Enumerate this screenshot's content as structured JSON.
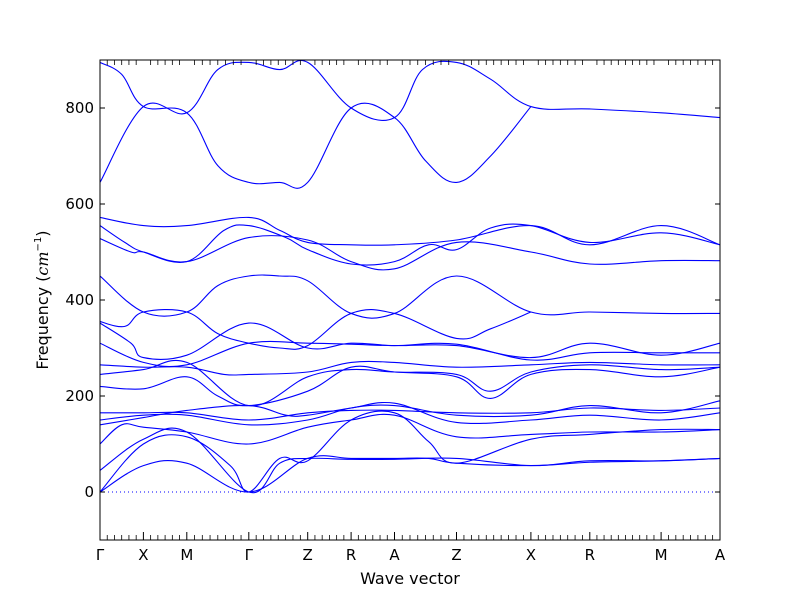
{
  "chart_data": {
    "type": "line",
    "title": "",
    "xlabel": "Wave vector",
    "ylabel_main": "Frequency (",
    "ylabel_unit": "cm",
    "ylabel_exp": "−1",
    "ylabel_close": ")",
    "ylim": [
      -100,
      900
    ],
    "yticks": [
      0,
      200,
      400,
      600,
      800
    ],
    "ytick_labels": [
      "0",
      "200",
      "400",
      "600",
      "800"
    ],
    "xlim": [
      0,
      10
    ],
    "kpoints": [
      {
        "label": "Γ",
        "x": 0
      },
      {
        "label": "X",
        "x": 0.7
      },
      {
        "label": "M",
        "x": 1.4
      },
      {
        "label": "Γ",
        "x": 2.4
      },
      {
        "label": "Z",
        "x": 3.35
      },
      {
        "label": "R",
        "x": 4.05
      },
      {
        "label": "A",
        "x": 4.75
      },
      {
        "label": "Z",
        "x": 5.75
      },
      {
        "label": "X",
        "x": 6.95
      },
      {
        "label": "R",
        "x": 7.9
      },
      {
        "label": "M",
        "x": 9.05
      },
      {
        "label": "A",
        "x": 10.0
      }
    ],
    "series_color": "#0000ff",
    "zero_line_color": "#0000ff",
    "grid": false,
    "legend": "none",
    "series": [
      {
        "x": [
          0,
          0.7,
          1.4,
          1.9,
          2.4,
          2.9,
          3.35,
          4.05,
          4.75,
          5.2,
          5.75,
          6.3,
          6.95,
          7.9,
          9.05,
          10.0
        ],
        "values": [
          645,
          803,
          790,
          880,
          895,
          880,
          895,
          800,
          780,
          880,
          895,
          860,
          803,
          798,
          790,
          780
        ]
      },
      {
        "x": [
          0,
          0.35,
          0.7,
          1.4,
          1.9,
          2.4,
          2.9,
          3.35,
          4.05,
          4.75,
          5.25,
          5.75,
          6.3,
          6.95
        ],
        "values": [
          895,
          870,
          803,
          790,
          680,
          645,
          645,
          645,
          800,
          780,
          690,
          645,
          700,
          803
        ]
      },
      {
        "x": [
          0,
          0.7,
          1.4,
          2.4,
          2.9,
          3.35,
          4.05,
          4.75,
          5.75,
          6.95,
          7.9,
          9.05,
          10.0
        ],
        "values": [
          572,
          555,
          555,
          572,
          545,
          520,
          515,
          515,
          525,
          555,
          515,
          555,
          515
        ]
      },
      {
        "x": [
          0,
          0.4,
          0.7,
          1.4,
          2.0,
          2.4,
          3.0,
          3.35,
          4.05,
          4.75,
          5.3,
          5.75,
          6.3,
          6.95,
          7.9,
          9.05,
          10.0
        ],
        "values": [
          555,
          520,
          500,
          480,
          545,
          555,
          530,
          505,
          475,
          480,
          515,
          505,
          550,
          555,
          520,
          540,
          515
        ]
      },
      {
        "x": [
          0,
          0.5,
          0.7,
          1.4,
          2.4,
          3.35,
          4.05,
          4.75,
          5.75,
          6.95,
          7.9,
          9.05,
          10.0
        ],
        "values": [
          528,
          500,
          500,
          480,
          530,
          525,
          480,
          465,
          520,
          500,
          475,
          482,
          482
        ]
      },
      {
        "x": [
          0,
          0.7,
          1.4,
          1.9,
          2.4,
          2.9,
          3.35,
          4.05,
          4.75,
          5.75,
          6.95,
          7.9,
          9.05,
          10.0
        ],
        "values": [
          450,
          375,
          375,
          430,
          450,
          450,
          440,
          372,
          372,
          450,
          375,
          375,
          372,
          372
        ]
      },
      {
        "x": [
          0,
          0.4,
          0.7,
          1.4,
          1.9,
          2.4,
          2.9,
          3.35,
          4.05,
          4.75,
          5.75,
          6.3,
          6.95
        ],
        "values": [
          355,
          345,
          375,
          375,
          330,
          310,
          300,
          305,
          372,
          372,
          320,
          340,
          375
        ]
      },
      {
        "x": [
          0,
          0.5,
          0.7,
          1.4,
          2.4,
          3.35,
          4.05,
          4.75,
          5.75,
          6.95,
          7.9,
          9.05,
          10.0
        ],
        "values": [
          352,
          310,
          280,
          285,
          352,
          300,
          310,
          305,
          305,
          280,
          310,
          285,
          310
        ]
      },
      {
        "x": [
          0,
          0.7,
          1.4,
          2.4,
          3.35,
          4.05,
          4.75,
          5.75,
          6.95,
          7.9,
          9.05,
          10.0
        ],
        "values": [
          310,
          270,
          265,
          310,
          310,
          308,
          305,
          308,
          275,
          290,
          290,
          290
        ]
      },
      {
        "x": [
          0,
          0.7,
          1.4,
          2.0,
          2.4,
          3.35,
          4.05,
          4.75,
          5.75,
          6.95,
          7.9,
          9.05,
          10.0
        ],
        "values": [
          265,
          260,
          260,
          245,
          245,
          250,
          270,
          270,
          260,
          265,
          270,
          265,
          265
        ]
      },
      {
        "x": [
          0,
          0.7,
          1.4,
          2.4,
          3.35,
          4.05,
          4.75,
          5.75,
          6.3,
          6.95,
          7.9,
          9.05,
          10.0
        ],
        "values": [
          245,
          255,
          270,
          180,
          240,
          255,
          250,
          245,
          210,
          250,
          265,
          255,
          260
        ]
      },
      {
        "x": [
          0,
          0.7,
          1.4,
          1.9,
          2.4,
          3.35,
          4.05,
          4.75,
          5.75,
          6.3,
          6.95,
          7.9,
          9.05,
          10.0
        ],
        "values": [
          220,
          215,
          240,
          200,
          180,
          210,
          260,
          250,
          240,
          195,
          245,
          255,
          240,
          260
        ]
      },
      {
        "x": [
          0,
          0.7,
          1.4,
          2.4,
          3.35,
          4.05,
          4.75,
          5.75,
          6.95,
          7.9,
          9.05,
          10.0
        ],
        "values": [
          165,
          165,
          165,
          150,
          165,
          170,
          170,
          165,
          165,
          175,
          170,
          175
        ]
      },
      {
        "x": [
          0,
          0.7,
          1.4,
          2.4,
          3.35,
          4.05,
          4.75,
          5.75,
          6.95,
          7.9,
          9.05,
          10.0
        ],
        "values": [
          150,
          160,
          160,
          140,
          150,
          175,
          180,
          160,
          160,
          180,
          165,
          190
        ]
      },
      {
        "x": [
          0,
          0.7,
          1.4,
          2.4,
          3.0,
          3.35,
          4.05,
          4.75,
          5.75,
          6.95,
          7.9,
          9.05,
          10.0
        ],
        "values": [
          140,
          155,
          170,
          180,
          160,
          160,
          175,
          185,
          145,
          150,
          160,
          150,
          165
        ]
      },
      {
        "x": [
          0,
          0.35,
          0.7,
          1.4,
          2.4,
          3.35,
          4.05,
          4.75,
          5.75,
          6.95,
          7.9,
          9.05,
          10.0
        ],
        "values": [
          100,
          140,
          135,
          125,
          100,
          135,
          150,
          160,
          115,
          120,
          125,
          125,
          130
        ]
      },
      {
        "x": [
          0,
          0.7,
          1.4,
          2.4,
          2.9,
          3.35,
          4.05,
          4.75,
          5.75,
          6.95,
          7.9,
          9.05,
          10.0
        ],
        "values": [
          45,
          110,
          125,
          0,
          60,
          70,
          68,
          68,
          70,
          55,
          65,
          65,
          70
        ]
      },
      {
        "x": [
          0,
          0.7,
          1.4,
          2.4,
          3.35,
          4.05,
          4.75,
          5.3,
          5.75,
          6.95,
          7.9,
          9.05,
          10.0
        ],
        "values": [
          0,
          55,
          60,
          0,
          70,
          70,
          70,
          70,
          60,
          55,
          62,
          65,
          70
        ]
      },
      {
        "x": [
          0,
          0.7,
          1.4,
          2.1,
          2.4,
          2.9,
          3.35,
          4.05,
          4.75,
          5.3,
          5.75,
          6.95,
          7.9,
          9.05,
          10.0
        ],
        "values": [
          0,
          100,
          115,
          55,
          0,
          70,
          65,
          150,
          165,
          105,
          60,
          110,
          120,
          130,
          130
        ]
      }
    ]
  }
}
